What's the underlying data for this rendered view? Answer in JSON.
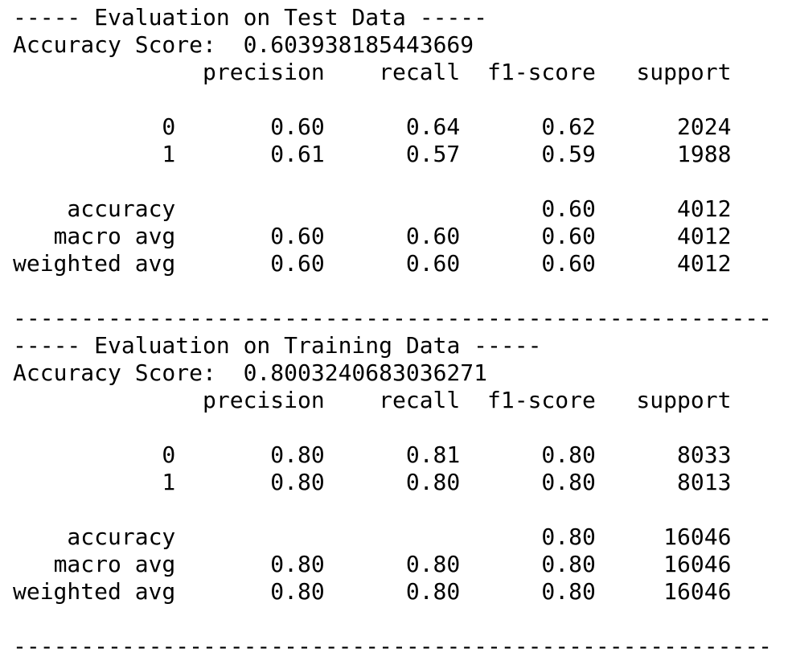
{
  "sections": [
    {
      "title": "----- Evaluation on Test Data -----",
      "accuracy_label": "Accuracy Score:",
      "accuracy_value": "0.603938185443669",
      "columns": [
        "precision",
        "recall",
        "f1-score",
        "support"
      ],
      "class_rows": [
        {
          "label": "0",
          "cells": [
            "0.60",
            "0.64",
            "0.62",
            "2024"
          ]
        },
        {
          "label": "1",
          "cells": [
            "0.61",
            "0.57",
            "0.59",
            "1988"
          ]
        }
      ],
      "summary_rows": [
        {
          "label": "accuracy",
          "cells": [
            null,
            null,
            "0.60",
            "4012"
          ]
        },
        {
          "label": "macro avg",
          "cells": [
            "0.60",
            "0.60",
            "0.60",
            "4012"
          ]
        },
        {
          "label": "weighted avg",
          "cells": [
            "0.60",
            "0.60",
            "0.60",
            "4012"
          ]
        }
      ],
      "separator": "--------------------------------------------------------"
    },
    {
      "title": "----- Evaluation on Training Data -----",
      "accuracy_label": "Accuracy Score:",
      "accuracy_value": "0.8003240683036271",
      "columns": [
        "precision",
        "recall",
        "f1-score",
        "support"
      ],
      "class_rows": [
        {
          "label": "0",
          "cells": [
            "0.80",
            "0.81",
            "0.80",
            "8033"
          ]
        },
        {
          "label": "1",
          "cells": [
            "0.80",
            "0.80",
            "0.80",
            "8013"
          ]
        }
      ],
      "summary_rows": [
        {
          "label": "accuracy",
          "cells": [
            null,
            null,
            "0.80",
            "16046"
          ]
        },
        {
          "label": "macro avg",
          "cells": [
            "0.80",
            "0.80",
            "0.80",
            "16046"
          ]
        },
        {
          "label": "weighted avg",
          "cells": [
            "0.80",
            "0.80",
            "0.80",
            "16046"
          ]
        }
      ],
      "separator": "--------------------------------------------------------"
    }
  ]
}
